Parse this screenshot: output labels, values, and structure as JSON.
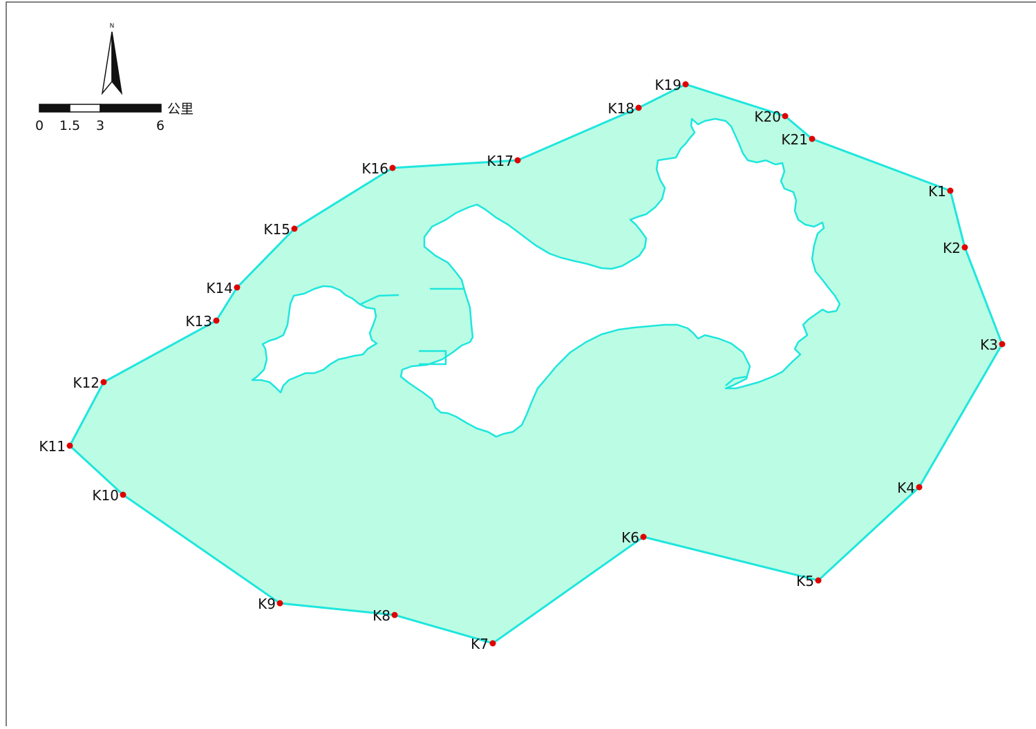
{
  "map": {
    "colors": {
      "boundary_stroke": "#1ee6dd",
      "area_fill": "#bbfde4",
      "point_fill": "#e00000",
      "frame": "#555555",
      "land_fill": "#ffffff"
    },
    "north_arrow": {
      "label": "N"
    },
    "scale_bar": {
      "unit": "公里",
      "ticks": [
        "0",
        "1.5",
        "3",
        "6"
      ]
    },
    "points": [
      {
        "id": "K1"
      },
      {
        "id": "K2"
      },
      {
        "id": "K3"
      },
      {
        "id": "K4"
      },
      {
        "id": "K5"
      },
      {
        "id": "K6"
      },
      {
        "id": "K7"
      },
      {
        "id": "K8"
      },
      {
        "id": "K9"
      },
      {
        "id": "K10"
      },
      {
        "id": "K11"
      },
      {
        "id": "K12"
      },
      {
        "id": "K13"
      },
      {
        "id": "K14"
      },
      {
        "id": "K15"
      },
      {
        "id": "K16"
      },
      {
        "id": "K17"
      },
      {
        "id": "K18"
      },
      {
        "id": "K19"
      },
      {
        "id": "K20"
      },
      {
        "id": "K21"
      }
    ]
  }
}
